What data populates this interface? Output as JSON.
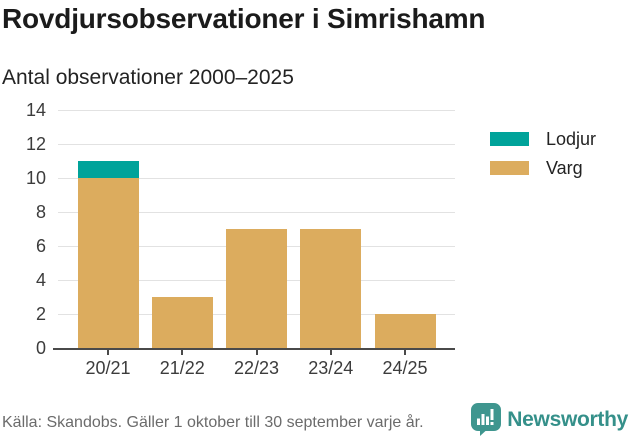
{
  "header": {
    "title": "Rovdjursobservationer i Simrishamn",
    "subtitle": "Antal observationer 2000–2025"
  },
  "chart_data": {
    "type": "bar",
    "stacked": true,
    "title": "Rovdjursobservationer i Simrishamn",
    "subtitle": "Antal observationer 2000–2025",
    "categories": [
      "20/21",
      "21/22",
      "22/23",
      "23/24",
      "24/25"
    ],
    "series": [
      {
        "name": "Lodjur",
        "color": "#00a39a",
        "values": [
          1,
          0,
          0,
          0,
          0
        ]
      },
      {
        "name": "Varg",
        "color": "#dcac5e",
        "values": [
          10,
          3,
          7,
          7,
          2
        ]
      }
    ],
    "stack_order_bottom_to_top": [
      "Varg",
      "Lodjur"
    ],
    "totals": [
      11,
      3,
      7,
      7,
      2
    ],
    "ylim": [
      0,
      14
    ],
    "yticks": [
      0,
      2,
      4,
      6,
      8,
      10,
      12,
      14
    ],
    "grid": true,
    "legend_position": "right",
    "colors": {
      "grid": "#e2e2e2",
      "axis": "#4a4a4a",
      "tick_label": "#3c3c3c"
    }
  },
  "legend": {
    "items": [
      {
        "label": "Lodjur",
        "color": "#00a39a"
      },
      {
        "label": "Varg",
        "color": "#dcac5e"
      }
    ]
  },
  "footer": {
    "source": "Källa: Skandobs. Gäller 1 oktober till 30 september varje år.",
    "brand": "Newsworthy",
    "brand_color": "#35908a",
    "icon_color": "#3f968f"
  }
}
